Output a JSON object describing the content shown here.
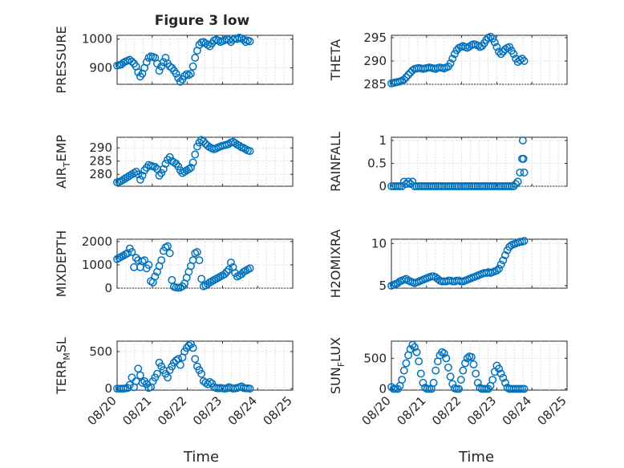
{
  "title": "Figure 3 low",
  "colors": {
    "marker": "#0072bd",
    "axis": "#262626",
    "grid": "#d9d9d9"
  },
  "x_tick_labels": [
    "08/20",
    "08/21",
    "08/22",
    "08/23",
    "08/24",
    "08/25"
  ],
  "xlabel": "Time",
  "chart_data": [
    {
      "type": "scatter",
      "ylabel": "PRESSURE",
      "xlim": [
        0,
        5
      ],
      "ylim": [
        843,
        1013
      ],
      "yticks": [
        900,
        1000
      ],
      "ytick_labels": [
        "900",
        "1000"
      ],
      "grid": true,
      "show_xticklabels": false,
      "x": [
        0.0,
        0.06,
        0.12,
        0.18,
        0.24,
        0.3,
        0.36,
        0.42,
        0.48,
        0.54,
        0.6,
        0.66,
        0.72,
        0.78,
        0.84,
        0.9,
        0.96,
        1.02,
        1.08,
        1.14,
        1.2,
        1.26,
        1.32,
        1.38,
        1.44,
        1.5,
        1.56,
        1.62,
        1.68,
        1.74,
        1.8,
        1.86,
        1.92,
        1.98,
        2.04,
        2.1,
        2.16,
        2.22,
        2.28,
        2.34,
        2.4,
        2.46,
        2.52,
        2.58,
        2.64,
        2.7,
        2.76,
        2.82,
        2.88,
        2.94,
        3.0,
        3.06,
        3.12,
        3.18,
        3.24,
        3.3,
        3.36,
        3.42,
        3.48,
        3.54,
        3.6,
        3.66,
        3.72,
        3.78
      ],
      "y": [
        908,
        910,
        912,
        918,
        922,
        925,
        928,
        922,
        915,
        905,
        885,
        870,
        880,
        900,
        920,
        935,
        940,
        938,
        935,
        915,
        890,
        905,
        920,
        935,
        915,
        905,
        900,
        890,
        880,
        865,
        852,
        860,
        872,
        878,
        875,
        880,
        905,
        935,
        960,
        980,
        988,
        990,
        985,
        980,
        975,
        985,
        995,
        998,
        995,
        990,
        993,
        996,
        1000,
        997,
        990,
        998,
        1002,
        1000,
        1005,
        1002,
        998,
        990,
        995,
        992
      ]
    },
    {
      "type": "scatter",
      "ylabel": "THETA",
      "xlim": [
        0,
        5
      ],
      "ylim": [
        285,
        295.5
      ],
      "yticks": [
        285,
        290,
        295
      ],
      "ytick_labels": [
        "285",
        "290",
        "295"
      ],
      "grid": true,
      "show_xticklabels": false,
      "x": [
        0.0,
        0.06,
        0.12,
        0.18,
        0.24,
        0.3,
        0.36,
        0.42,
        0.48,
        0.54,
        0.6,
        0.66,
        0.72,
        0.78,
        0.84,
        0.9,
        0.96,
        1.02,
        1.08,
        1.14,
        1.2,
        1.26,
        1.32,
        1.38,
        1.44,
        1.5,
        1.56,
        1.62,
        1.68,
        1.74,
        1.8,
        1.86,
        1.92,
        1.98,
        2.04,
        2.1,
        2.16,
        2.22,
        2.28,
        2.34,
        2.4,
        2.46,
        2.52,
        2.58,
        2.64,
        2.7,
        2.76,
        2.82,
        2.88,
        2.94,
        3.0,
        3.06,
        3.12,
        3.18,
        3.24,
        3.3,
        3.36,
        3.42,
        3.48,
        3.54,
        3.6,
        3.66,
        3.72,
        3.78
      ],
      "y": [
        285.2,
        285.3,
        285.4,
        285.5,
        285.6,
        285.8,
        286.0,
        286.5,
        287.0,
        287.5,
        288.0,
        288.3,
        288.4,
        288.5,
        288.4,
        288.3,
        288.4,
        288.5,
        288.6,
        288.5,
        288.4,
        288.3,
        288.5,
        288.6,
        288.5,
        288.4,
        288.6,
        288.8,
        289.5,
        290.5,
        291.5,
        292.3,
        292.8,
        293.0,
        293.2,
        293.0,
        292.8,
        293.1,
        293.4,
        293.6,
        293.5,
        293.3,
        293.0,
        293.2,
        293.8,
        294.5,
        295.0,
        295.2,
        294.8,
        294.0,
        293.0,
        292.0,
        291.5,
        292.0,
        292.5,
        292.8,
        293.0,
        292.2,
        291.5,
        290.5,
        289.8,
        290.2,
        290.5,
        290.0
      ]
    },
    {
      "type": "scatter",
      "ylabel": "AIR_TEMP",
      "xlim": [
        0,
        5
      ],
      "ylim": [
        275.5,
        294
      ],
      "yticks": [
        280,
        285,
        290
      ],
      "ytick_labels": [
        "280",
        "285",
        "290"
      ],
      "grid": true,
      "show_xticklabels": false,
      "x": [
        0.0,
        0.06,
        0.12,
        0.18,
        0.24,
        0.3,
        0.36,
        0.42,
        0.48,
        0.54,
        0.6,
        0.66,
        0.72,
        0.78,
        0.84,
        0.9,
        0.96,
        1.02,
        1.08,
        1.14,
        1.2,
        1.26,
        1.32,
        1.38,
        1.44,
        1.5,
        1.56,
        1.62,
        1.68,
        1.74,
        1.8,
        1.86,
        1.92,
        1.98,
        2.04,
        2.1,
        2.16,
        2.22,
        2.28,
        2.34,
        2.4,
        2.46,
        2.52,
        2.58,
        2.64,
        2.7,
        2.76,
        2.82,
        2.88,
        2.94,
        3.0,
        3.06,
        3.12,
        3.18,
        3.24,
        3.3,
        3.36,
        3.42,
        3.48,
        3.54,
        3.6,
        3.66,
        3.72,
        3.78
      ],
      "y": [
        277.0,
        277.2,
        277.5,
        278.0,
        278.5,
        279.0,
        279.5,
        280.0,
        280.5,
        281.0,
        280.0,
        278.0,
        279.5,
        281.5,
        282.5,
        283.5,
        283.2,
        283.0,
        282.8,
        282.0,
        279.5,
        280.5,
        282.0,
        284.0,
        285.5,
        286.5,
        285.0,
        284.5,
        284.0,
        283.0,
        281.5,
        280.5,
        281.0,
        281.5,
        282.0,
        282.5,
        284.5,
        287.5,
        290.5,
        292.0,
        293.0,
        292.5,
        291.5,
        290.8,
        290.2,
        289.8,
        289.5,
        289.8,
        290.2,
        290.5,
        290.8,
        291.0,
        291.2,
        291.5,
        292.0,
        292.3,
        291.8,
        291.2,
        290.8,
        290.2,
        290.0,
        289.5,
        289.0,
        288.8
      ]
    },
    {
      "type": "scatter",
      "ylabel": "RAINFALL",
      "xlim": [
        0,
        5
      ],
      "ylim": [
        0,
        1.07
      ],
      "yticks": [
        0,
        0.5,
        1
      ],
      "ytick_labels": [
        "0",
        "0.5",
        "1"
      ],
      "grid": true,
      "show_xticklabels": false,
      "x": [
        0.0,
        0.06,
        0.12,
        0.18,
        0.24,
        0.3,
        0.36,
        0.42,
        0.48,
        0.54,
        0.6,
        0.66,
        0.72,
        0.78,
        0.84,
        0.9,
        0.96,
        1.02,
        1.08,
        1.14,
        1.2,
        1.26,
        1.32,
        1.38,
        1.44,
        1.5,
        1.56,
        1.62,
        1.68,
        1.74,
        1.8,
        1.86,
        1.92,
        1.98,
        2.04,
        2.1,
        2.16,
        2.22,
        2.28,
        2.34,
        2.4,
        2.46,
        2.52,
        2.58,
        2.64,
        2.7,
        2.76,
        2.82,
        2.88,
        2.94,
        3.0,
        3.06,
        3.12,
        3.18,
        3.24,
        3.3,
        3.36,
        3.42,
        3.48,
        3.54,
        3.6,
        3.66,
        3.72,
        3.74,
        3.76,
        3.78
      ],
      "y": [
        0,
        0,
        0,
        0,
        0,
        0,
        0.1,
        0.05,
        0.1,
        0.05,
        0.1,
        0,
        0,
        0,
        0,
        0,
        0,
        0,
        0,
        0,
        0,
        0,
        0,
        0,
        0,
        0,
        0,
        0,
        0,
        0,
        0,
        0,
        0,
        0,
        0,
        0,
        0,
        0,
        0,
        0,
        0,
        0,
        0,
        0,
        0,
        0,
        0,
        0,
        0,
        0,
        0,
        0,
        0,
        0,
        0,
        0,
        0,
        0,
        0,
        0.05,
        0.1,
        0.3,
        0.6,
        1.0,
        0.6,
        0.3
      ]
    },
    {
      "type": "scatter",
      "ylabel": "MIXDEPTH",
      "xlim": [
        0,
        5
      ],
      "ylim": [
        0,
        2100
      ],
      "yticks": [
        0,
        1000,
        2000
      ],
      "ytick_labels": [
        "0",
        "1000",
        "2000"
      ],
      "grid": true,
      "show_xticklabels": false,
      "x": [
        0.0,
        0.06,
        0.12,
        0.18,
        0.24,
        0.3,
        0.36,
        0.42,
        0.48,
        0.54,
        0.6,
        0.66,
        0.72,
        0.78,
        0.84,
        0.9,
        0.96,
        1.02,
        1.08,
        1.14,
        1.2,
        1.26,
        1.32,
        1.38,
        1.44,
        1.5,
        1.56,
        1.62,
        1.68,
        1.74,
        1.8,
        1.86,
        1.92,
        1.98,
        2.04,
        2.1,
        2.16,
        2.22,
        2.28,
        2.34,
        2.4,
        2.46,
        2.52,
        2.58,
        2.64,
        2.7,
        2.76,
        2.82,
        2.88,
        2.94,
        3.0,
        3.06,
        3.12,
        3.18,
        3.24,
        3.3,
        3.36,
        3.42,
        3.48,
        3.54,
        3.6,
        3.66,
        3.72,
        3.78
      ],
      "y": [
        1250,
        1300,
        1350,
        1400,
        1450,
        1500,
        1700,
        1550,
        900,
        1300,
        1200,
        900,
        1150,
        1200,
        850,
        1000,
        300,
        250,
        500,
        700,
        950,
        1200,
        1600,
        1750,
        1800,
        1500,
        350,
        60,
        30,
        20,
        30,
        80,
        200,
        450,
        700,
        950,
        1200,
        1500,
        1550,
        1200,
        400,
        80,
        120,
        180,
        250,
        300,
        350,
        400,
        450,
        500,
        550,
        600,
        700,
        800,
        1100,
        900,
        650,
        500,
        550,
        600,
        700,
        750,
        800,
        850
      ]
    },
    {
      "type": "scatter",
      "ylabel": "H2OMIXRA",
      "xlim": [
        0,
        5
      ],
      "ylim": [
        4.7,
        10.5
      ],
      "yticks": [
        5,
        10
      ],
      "ytick_labels": [
        "5",
        "10"
      ],
      "grid": true,
      "show_xticklabels": false,
      "x": [
        0.0,
        0.06,
        0.12,
        0.18,
        0.24,
        0.3,
        0.36,
        0.42,
        0.48,
        0.54,
        0.6,
        0.66,
        0.72,
        0.78,
        0.84,
        0.9,
        0.96,
        1.02,
        1.08,
        1.14,
        1.2,
        1.26,
        1.32,
        1.38,
        1.44,
        1.5,
        1.56,
        1.62,
        1.68,
        1.74,
        1.8,
        1.86,
        1.92,
        1.98,
        2.04,
        2.1,
        2.16,
        2.22,
        2.28,
        2.34,
        2.4,
        2.46,
        2.52,
        2.58,
        2.64,
        2.7,
        2.76,
        2.82,
        2.88,
        2.94,
        3.0,
        3.06,
        3.12,
        3.18,
        3.24,
        3.3,
        3.36,
        3.42,
        3.48,
        3.54,
        3.6,
        3.66,
        3.72,
        3.78
      ],
      "y": [
        5.0,
        5.1,
        5.2,
        5.3,
        5.5,
        5.6,
        5.7,
        5.8,
        5.6,
        5.5,
        5.4,
        5.3,
        5.4,
        5.5,
        5.6,
        5.7,
        5.8,
        5.9,
        6.0,
        6.1,
        6.1,
        6.0,
        5.8,
        5.6,
        5.5,
        5.5,
        5.5,
        5.6,
        5.6,
        5.5,
        5.5,
        5.6,
        5.6,
        5.5,
        5.5,
        5.6,
        5.7,
        5.8,
        5.9,
        6.0,
        6.1,
        6.2,
        6.3,
        6.4,
        6.5,
        6.5,
        6.6,
        6.5,
        6.6,
        6.7,
        6.8,
        7.0,
        7.5,
        8.0,
        8.6,
        9.2,
        9.6,
        9.8,
        9.9,
        10.0,
        10.1,
        10.2,
        10.2,
        10.3
      ]
    },
    {
      "type": "scatter",
      "ylabel": "TERR_MSL",
      "xlim": [
        0,
        5
      ],
      "ylim": [
        -20,
        640
      ],
      "yticks": [
        0,
        500
      ],
      "ytick_labels": [
        "0",
        "500"
      ],
      "grid": true,
      "show_xticklabels": false,
      "x": [
        0.0,
        0.06,
        0.12,
        0.18,
        0.24,
        0.3,
        0.36,
        0.42,
        0.48,
        0.54,
        0.6,
        0.66,
        0.72,
        0.78,
        0.84,
        0.9,
        0.96,
        1.02,
        1.08,
        1.14,
        1.2,
        1.26,
        1.32,
        1.38,
        1.44,
        1.5,
        1.56,
        1.62,
        1.68,
        1.74,
        1.8,
        1.86,
        1.92,
        1.98,
        2.04,
        2.1,
        2.16,
        2.22,
        2.28,
        2.34,
        2.4,
        2.46,
        2.52,
        2.58,
        2.64,
        2.7,
        2.76,
        2.82,
        2.88,
        2.94,
        3.0,
        3.06,
        3.12,
        3.18,
        3.24,
        3.3,
        3.36,
        3.42,
        3.48,
        3.54,
        3.6,
        3.66,
        3.72,
        3.78
      ],
      "y": [
        0,
        0,
        0,
        0,
        5,
        10,
        50,
        150,
        20,
        100,
        270,
        180,
        80,
        100,
        60,
        10,
        20,
        100,
        150,
        200,
        350,
        300,
        250,
        200,
        150,
        250,
        300,
        350,
        380,
        400,
        320,
        420,
        500,
        550,
        580,
        600,
        550,
        400,
        300,
        250,
        200,
        100,
        80,
        60,
        90,
        70,
        20,
        10,
        5,
        10,
        5,
        0,
        5,
        20,
        10,
        0,
        5,
        10,
        20,
        30,
        10,
        5,
        5,
        0
      ]
    },
    {
      "type": "scatter",
      "ylabel": "SUN_FLUX",
      "xlim": [
        0,
        5
      ],
      "ylim": [
        -20,
        780
      ],
      "yticks": [
        0,
        500
      ],
      "ytick_labels": [
        "0",
        "500"
      ],
      "grid": true,
      "show_xticklabels": true,
      "x": [
        0.0,
        0.06,
        0.12,
        0.18,
        0.24,
        0.3,
        0.36,
        0.42,
        0.48,
        0.54,
        0.6,
        0.66,
        0.72,
        0.78,
        0.84,
        0.9,
        0.96,
        1.02,
        1.08,
        1.14,
        1.2,
        1.26,
        1.32,
        1.38,
        1.44,
        1.5,
        1.56,
        1.62,
        1.68,
        1.74,
        1.8,
        1.86,
        1.92,
        1.98,
        2.04,
        2.1,
        2.16,
        2.22,
        2.28,
        2.34,
        2.4,
        2.46,
        2.52,
        2.58,
        2.64,
        2.7,
        2.76,
        2.82,
        2.88,
        2.94,
        3.0,
        3.06,
        3.12,
        3.18,
        3.24,
        3.3,
        3.36,
        3.42,
        3.48,
        3.54,
        3.6,
        3.66,
        3.72,
        3.78
      ],
      "y": [
        30,
        0,
        0,
        0,
        50,
        150,
        300,
        420,
        550,
        650,
        720,
        680,
        600,
        450,
        250,
        100,
        20,
        0,
        0,
        0,
        100,
        300,
        450,
        550,
        600,
        580,
        500,
        350,
        200,
        80,
        10,
        0,
        0,
        150,
        300,
        420,
        500,
        530,
        520,
        400,
        250,
        100,
        20,
        0,
        0,
        0,
        0,
        50,
        150,
        280,
        380,
        330,
        250,
        180,
        100,
        20,
        0,
        0,
        0,
        0,
        0,
        0,
        0,
        0
      ]
    }
  ]
}
